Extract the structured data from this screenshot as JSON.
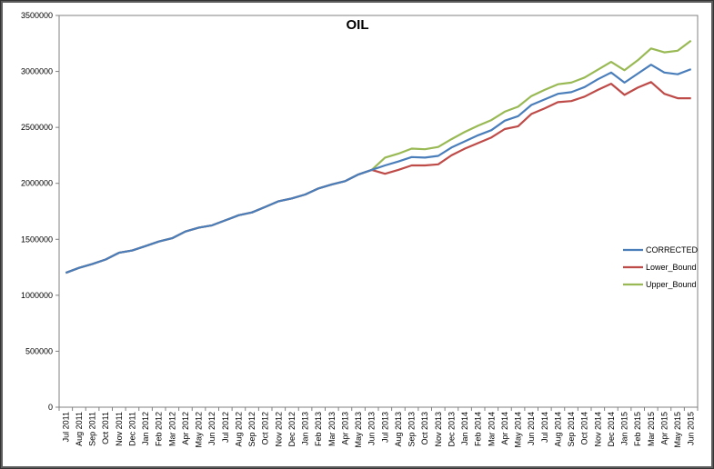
{
  "chart_data": {
    "type": "line",
    "title": "OIL",
    "xlabel": "",
    "ylabel": "",
    "ylim": [
      0,
      3500000
    ],
    "yticks": [
      "0",
      "500000",
      "1000000",
      "1500000",
      "2000000",
      "2500000",
      "3000000",
      "3500000"
    ],
    "grid": false,
    "legend_position": "right",
    "categories": [
      "Jul 2011",
      "Aug 2011",
      "Sep 2011",
      "Oct 2011",
      "Nov 2011",
      "Dec 2011",
      "Jan 2012",
      "Feb 2012",
      "Mar 2012",
      "Apr 2012",
      "May 2012",
      "Jun 2012",
      "Jul 2012",
      "Aug 2012",
      "Sep 2012",
      "Oct 2012",
      "Nov 2012",
      "Dec 2012",
      "Jan 2013",
      "Feb 2013",
      "Mar 2013",
      "Apr 2013",
      "May 2013",
      "Jun 2013",
      "Jul 2013",
      "Aug 2013",
      "Sep 2013",
      "Oct 2013",
      "Nov 2013",
      "Dec 2013",
      "Jan 2014",
      "Feb 2014",
      "Mar 2014",
      "Apr 2014",
      "May 2014",
      "Jun 2014",
      "Jul 2014",
      "Aug 2014",
      "Sep 2014",
      "Oct 2014",
      "Nov 2014",
      "Dec 2014",
      "Jan 2015",
      "Feb 2015",
      "Mar 2015",
      "Apr 2015",
      "May 2015",
      "Jun 2015"
    ],
    "series": [
      {
        "name": "CORRECTED",
        "color": "#4a7ebb",
        "values": [
          1200000,
          1245000,
          1280000,
          1320000,
          1380000,
          1400000,
          1440000,
          1480000,
          1510000,
          1570000,
          1605000,
          1625000,
          1670000,
          1715000,
          1740000,
          1790000,
          1840000,
          1865000,
          1900000,
          1955000,
          1990000,
          2020000,
          2080000,
          2120000,
          2160000,
          2195000,
          2235000,
          2230000,
          2245000,
          2320000,
          2375000,
          2430000,
          2475000,
          2560000,
          2600000,
          2700000,
          2750000,
          2800000,
          2815000,
          2860000,
          2930000,
          2990000,
          2900000,
          2980000,
          3060000,
          2990000,
          2975000,
          3020000
        ]
      },
      {
        "name": "Lower_Bound",
        "color": "#be4b48",
        "values": [
          1200000,
          1245000,
          1280000,
          1320000,
          1380000,
          1400000,
          1440000,
          1480000,
          1510000,
          1570000,
          1605000,
          1625000,
          1670000,
          1715000,
          1740000,
          1790000,
          1840000,
          1865000,
          1900000,
          1955000,
          1990000,
          2020000,
          2080000,
          2120000,
          2085000,
          2120000,
          2160000,
          2160000,
          2170000,
          2250000,
          2310000,
          2360000,
          2410000,
          2485000,
          2510000,
          2620000,
          2670000,
          2725000,
          2735000,
          2775000,
          2835000,
          2890000,
          2790000,
          2855000,
          2905000,
          2800000,
          2760000,
          2760000
        ]
      },
      {
        "name": "Upper_Bound",
        "color": "#98b954",
        "values": [
          1200000,
          1245000,
          1280000,
          1320000,
          1380000,
          1400000,
          1440000,
          1480000,
          1510000,
          1570000,
          1605000,
          1625000,
          1670000,
          1715000,
          1740000,
          1790000,
          1840000,
          1865000,
          1900000,
          1955000,
          1990000,
          2020000,
          2080000,
          2120000,
          2230000,
          2265000,
          2310000,
          2305000,
          2325000,
          2395000,
          2460000,
          2515000,
          2565000,
          2640000,
          2685000,
          2780000,
          2835000,
          2885000,
          2900000,
          2945000,
          3015000,
          3085000,
          3010000,
          3100000,
          3205000,
          3170000,
          3185000,
          3275000
        ]
      }
    ]
  }
}
